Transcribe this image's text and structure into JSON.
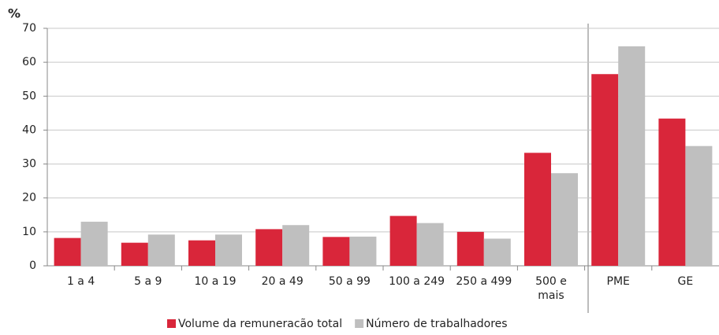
{
  "chart_data": {
    "type": "bar",
    "y_label": "%",
    "categories": [
      "1 a 4",
      "5 a 9",
      "10 a 19",
      "20 a 49",
      "50 a 99",
      "100 a 249",
      "250 a 499",
      "500 e\nmais",
      "PME",
      "GE"
    ],
    "series": [
      {
        "name": "Volume da remuneracão total",
        "color": "#d9263a",
        "values": [
          8.2,
          6.8,
          7.5,
          10.8,
          8.5,
          14.7,
          10,
          33.3,
          56.5,
          43.4
        ]
      },
      {
        "name": "Número de trabalhadores",
        "color": "#bfbfbf",
        "values": [
          13,
          9.2,
          9.2,
          12,
          8.6,
          12.6,
          8,
          27.3,
          64.7,
          35.3
        ]
      }
    ],
    "ylim": [
      0,
      70
    ],
    "yticks": [
      0,
      10,
      20,
      30,
      40,
      50,
      60,
      70
    ],
    "grid": true
  }
}
